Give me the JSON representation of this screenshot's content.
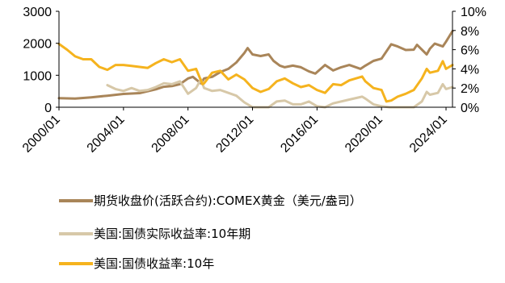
{
  "chart_data": {
    "type": "line",
    "left_axis": {
      "ticks": [
        "0",
        "1000",
        "2000",
        "3000"
      ],
      "ylim": [
        0,
        3000
      ]
    },
    "right_axis": {
      "ticks": [
        "0%",
        "2%",
        "4%",
        "6%",
        "8%",
        "10%"
      ],
      "ylim": [
        0,
        10
      ]
    },
    "x_ticks": [
      "2000/01",
      "2004/01",
      "2008/01",
      "2012/01",
      "2016/01",
      "2020/01",
      "2024/01"
    ],
    "xlim": [
      2000.0,
      2024.4
    ],
    "grid": false,
    "legend_position": "bottom",
    "series": [
      {
        "name": "期货收盘价(活跃合约):COMEX黄金（美元/盎司）",
        "axis": "left",
        "color": "#a98559",
        "x": [
          2000.0,
          2001.0,
          2002.0,
          2003.0,
          2004.0,
          2005.0,
          2006.0,
          2006.5,
          2007.0,
          2007.5,
          2008.0,
          2008.3,
          2008.8,
          2009.0,
          2009.5,
          2010.0,
          2010.5,
          2011.0,
          2011.5,
          2011.7,
          2012.0,
          2012.5,
          2013.0,
          2013.3,
          2013.7,
          2014.0,
          2014.5,
          2015.0,
          2015.5,
          2015.9,
          2016.5,
          2017.0,
          2017.5,
          2018.0,
          2018.7,
          2019.0,
          2019.5,
          2020.0,
          2020.6,
          2021.0,
          2021.5,
          2022.0,
          2022.2,
          2022.8,
          2023.0,
          2023.3,
          2023.8,
          2024.0,
          2024.4
        ],
        "y": [
          285,
          270,
          310,
          360,
          415,
          440,
          560,
          640,
          660,
          720,
          900,
          950,
          750,
          900,
          950,
          1100,
          1200,
          1400,
          1700,
          1850,
          1650,
          1600,
          1650,
          1450,
          1300,
          1250,
          1300,
          1250,
          1120,
          1050,
          1320,
          1150,
          1250,
          1320,
          1200,
          1300,
          1450,
          1520,
          1970,
          1900,
          1790,
          1800,
          1950,
          1650,
          1830,
          1990,
          1900,
          2050,
          2380
        ]
      },
      {
        "name": "美国:国债实际收益率:10年期",
        "axis": "right",
        "color": "#d7c8a8",
        "x": [
          2003.0,
          2003.5,
          2004.0,
          2004.5,
          2005.0,
          2005.5,
          2006.0,
          2006.5,
          2007.0,
          2007.5,
          2008.0,
          2008.5,
          2008.8,
          2009.0,
          2009.5,
          2010.0,
          2010.5,
          2011.0,
          2011.5,
          2012.0,
          2012.5,
          2013.0,
          2013.5,
          2014.0,
          2014.5,
          2015.0,
          2015.5,
          2016.0,
          2016.5,
          2017.0,
          2018.0,
          2018.8,
          2019.0,
          2019.5,
          2020.0,
          2020.5,
          2021.0,
          2021.5,
          2022.0,
          2022.5,
          2022.8,
          2023.0,
          2023.5,
          2023.8,
          2024.0,
          2024.4
        ],
        "y": [
          2.3,
          1.9,
          1.7,
          2.0,
          1.7,
          1.8,
          2.1,
          2.5,
          2.4,
          2.7,
          1.4,
          2.0,
          2.9,
          2.0,
          1.7,
          1.8,
          1.5,
          1.2,
          0.5,
          -0.1,
          -0.6,
          -0.5,
          0.6,
          0.7,
          0.3,
          0.3,
          0.6,
          0.1,
          0.0,
          0.4,
          0.8,
          1.1,
          0.9,
          0.3,
          0.1,
          -0.9,
          -0.9,
          -1.1,
          -0.8,
          0.6,
          1.6,
          1.3,
          1.5,
          2.4,
          1.9,
          2.1
        ]
      },
      {
        "name": "美国:国债收益率:10年",
        "axis": "right",
        "color": "#f5b31e",
        "x": [
          2000.0,
          2000.5,
          2001.0,
          2001.5,
          2002.0,
          2002.5,
          2003.0,
          2003.5,
          2004.0,
          2004.5,
          2005.0,
          2005.5,
          2006.0,
          2006.5,
          2007.0,
          2007.5,
          2008.0,
          2008.5,
          2008.9,
          2009.0,
          2009.5,
          2010.0,
          2010.5,
          2011.0,
          2011.5,
          2012.0,
          2012.5,
          2013.0,
          2013.5,
          2014.0,
          2014.5,
          2015.0,
          2015.5,
          2016.0,
          2016.5,
          2017.0,
          2017.5,
          2018.0,
          2018.8,
          2019.0,
          2019.5,
          2020.0,
          2020.3,
          2020.6,
          2021.0,
          2021.5,
          2022.0,
          2022.5,
          2022.8,
          2023.0,
          2023.5,
          2023.8,
          2024.0,
          2024.4
        ],
        "y": [
          6.6,
          6.0,
          5.3,
          5.0,
          5.0,
          4.2,
          3.9,
          4.4,
          4.4,
          4.3,
          4.2,
          4.1,
          4.6,
          5.0,
          4.7,
          5.0,
          3.8,
          4.0,
          2.4,
          2.5,
          3.6,
          3.8,
          2.9,
          3.4,
          2.9,
          2.0,
          1.6,
          1.9,
          2.7,
          3.0,
          2.5,
          2.1,
          2.3,
          1.8,
          1.5,
          2.4,
          2.3,
          2.8,
          3.2,
          2.7,
          2.0,
          1.8,
          0.6,
          0.7,
          1.1,
          1.4,
          1.8,
          3.0,
          4.0,
          3.6,
          3.8,
          4.8,
          4.0,
          4.4
        ]
      }
    ]
  }
}
